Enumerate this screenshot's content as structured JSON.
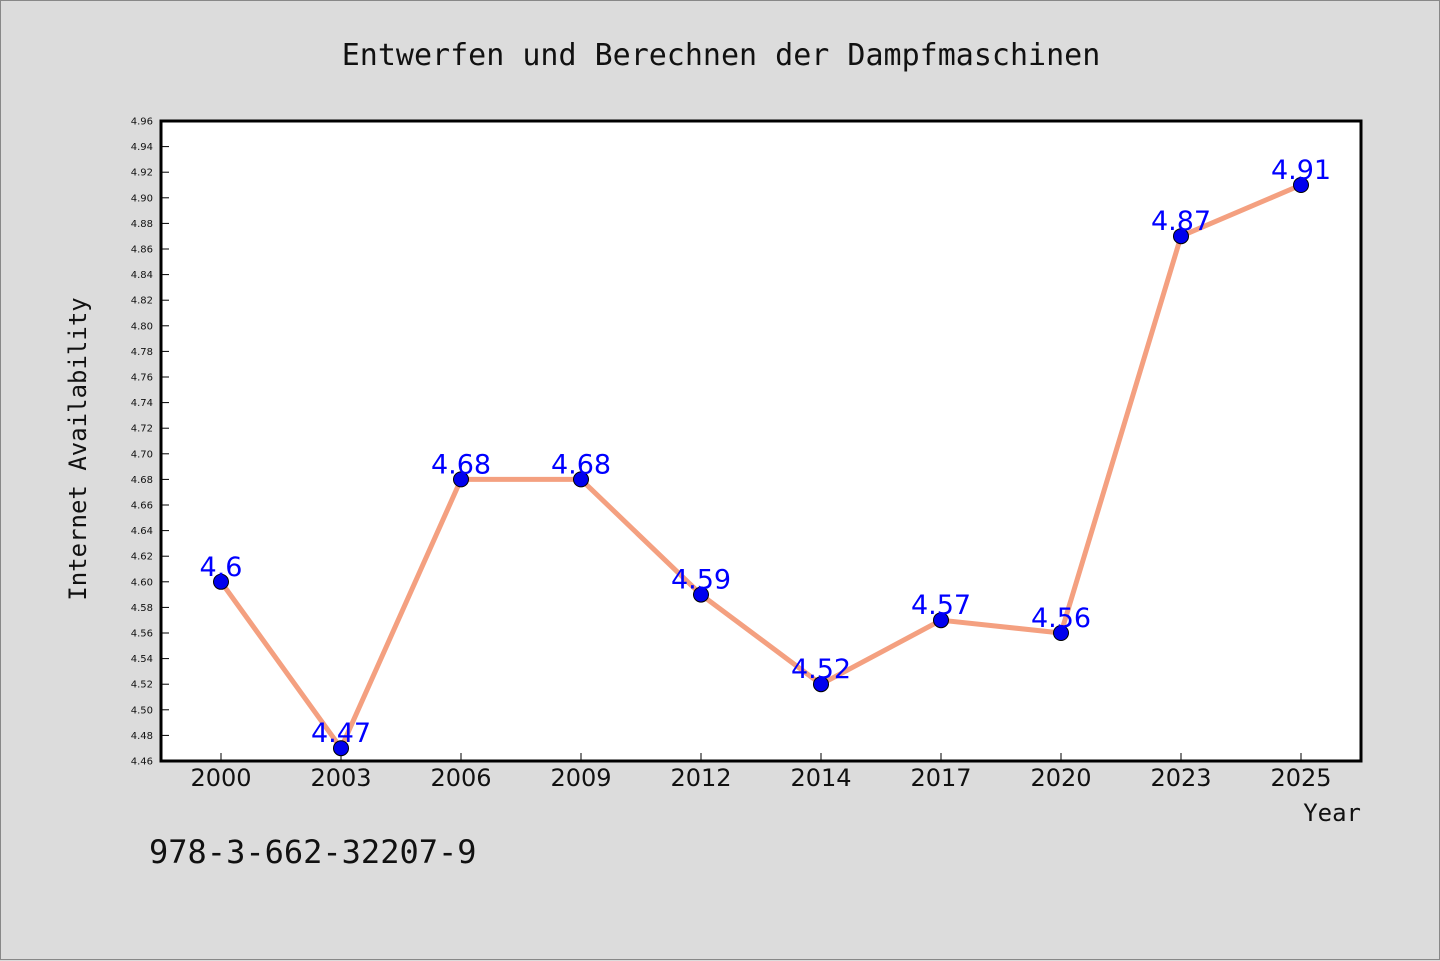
{
  "chart_data": {
    "type": "line",
    "title": "Entwerfen und Berechnen der Dampfmaschinen",
    "xlabel": "Year",
    "ylabel": "Internet Availability",
    "categories": [
      "2000",
      "2003",
      "2006",
      "2009",
      "2012",
      "2014",
      "2017",
      "2020",
      "2023",
      "2025"
    ],
    "series": [
      {
        "values": [
          4.6,
          4.47,
          4.68,
          4.68,
          4.59,
          4.52,
          4.57,
          4.56,
          4.87,
          4.91
        ]
      }
    ],
    "data_labels": [
      "4.6",
      "4.47",
      "4.68",
      "4.68",
      "4.59",
      "4.52",
      "4.57",
      "4.56",
      "4.87",
      "4.91"
    ],
    "ylim": [
      4.46,
      4.96
    ],
    "yticks": [
      "4.46",
      "4.48",
      "4.50",
      "4.52",
      "4.54",
      "4.56",
      "4.58",
      "4.60",
      "4.62",
      "4.64",
      "4.66",
      "4.68",
      "4.70",
      "4.72",
      "4.74",
      "4.76",
      "4.78",
      "4.80",
      "4.82",
      "4.84",
      "4.86",
      "4.88",
      "4.90",
      "4.92",
      "4.94",
      "4.96"
    ],
    "grid": false,
    "colors": {
      "line": "#f4a080",
      "marker": "#0000ee",
      "label": "#0000ff",
      "background": "#dcdcdc",
      "plot_background": "#ffffff"
    }
  },
  "footer": {
    "isbn": "978-3-662-32207-9"
  }
}
